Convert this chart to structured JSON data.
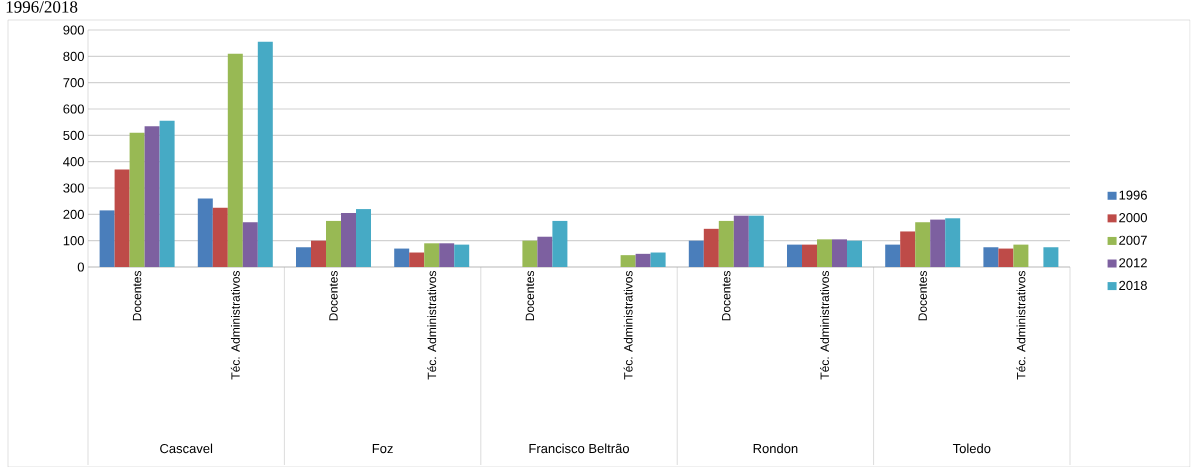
{
  "chart_data": {
    "type": "bar",
    "title": "1996/2018",
    "categories": [
      "Docentes",
      "Téc. Administrativos",
      "Docentes",
      "Téc. Administrativos",
      "Docentes",
      "Téc. Administrativos",
      "Docentes",
      "Téc. Administrativos",
      "Docentes",
      "Téc. Administrativos"
    ],
    "annotations": [
      "Cascavel",
      "Foz",
      "Francisco Beltrão",
      "Rondon",
      "Toledo"
    ],
    "series": [
      {
        "name": "1996",
        "color": "#4a7ebb",
        "values": [
          215,
          260,
          75,
          70,
          null,
          null,
          100,
          85,
          85,
          75
        ]
      },
      {
        "name": "2000",
        "color": "#be4b48",
        "values": [
          370,
          225,
          100,
          55,
          null,
          null,
          145,
          85,
          135,
          70
        ]
      },
      {
        "name": "2007",
        "color": "#98b954",
        "values": [
          510,
          810,
          175,
          90,
          100,
          45,
          175,
          105,
          170,
          85
        ]
      },
      {
        "name": "2012",
        "color": "#7d60a0",
        "values": [
          535,
          170,
          205,
          90,
          115,
          50,
          195,
          105,
          180,
          null
        ]
      },
      {
        "name": "2018",
        "color": "#46aac5",
        "values": [
          555,
          855,
          220,
          85,
          175,
          55,
          195,
          100,
          185,
          75
        ]
      }
    ],
    "ylim": [
      0,
      900
    ],
    "yticks": [
      0,
      100,
      200,
      300,
      400,
      500,
      600,
      700,
      800,
      900
    ],
    "grid": "y",
    "legend": "right"
  }
}
